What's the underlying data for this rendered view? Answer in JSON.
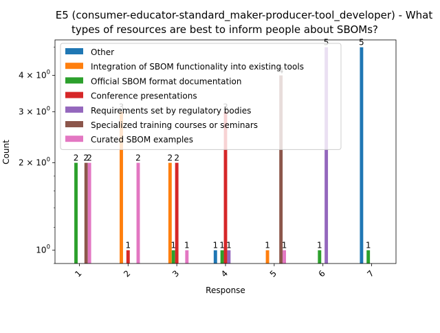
{
  "chart_data": {
    "type": "bar",
    "title_line1": "E5 (consumer-educator-standard_maker-producer-tool_developer) - What",
    "title_line2": "types of resources are best to inform people about SBOMs?",
    "xlabel": "Response",
    "ylabel": "Count",
    "yscale": "log",
    "ylim": [
      0.9,
      5.3
    ],
    "categories": [
      "1",
      "2",
      "3",
      "4",
      "5",
      "6",
      "7"
    ],
    "yticks": [
      {
        "value": 1,
        "base": "10",
        "exp": "0"
      },
      {
        "value": 2,
        "base": "2 × 10",
        "exp": "0"
      },
      {
        "value": 3,
        "base": "3 × 10",
        "exp": "0"
      },
      {
        "value": 4,
        "base": "4 × 10",
        "exp": "0"
      }
    ],
    "legend_position": "top-left",
    "series": [
      {
        "name": "Other",
        "color": "#1f77b4",
        "values": [
          0,
          0,
          0,
          1,
          0,
          0,
          5
        ]
      },
      {
        "name": "Integration of SBOM functionality into existing tools",
        "color": "#ff7f0e",
        "values": [
          0,
          3,
          2,
          0,
          1,
          0,
          0
        ]
      },
      {
        "name": "Official SBOM format documentation",
        "color": "#2ca02c",
        "values": [
          2,
          0,
          1,
          1,
          0,
          1,
          1
        ]
      },
      {
        "name": "Conference presentations",
        "color": "#d62728",
        "values": [
          0,
          1,
          2,
          3,
          0,
          0,
          0
        ]
      },
      {
        "name": "Requirements set by regulatory bodies",
        "color": "#9467bd",
        "values": [
          0,
          0,
          0,
          1,
          0,
          5,
          0
        ]
      },
      {
        "name": "Specialized training courses or seminars",
        "color": "#8c564b",
        "values": [
          2,
          0,
          0,
          0,
          4,
          0,
          0
        ]
      },
      {
        "name": "Curated SBOM examples",
        "color": "#e377c2",
        "values": [
          2,
          2,
          1,
          0,
          1,
          0,
          0
        ]
      }
    ]
  }
}
